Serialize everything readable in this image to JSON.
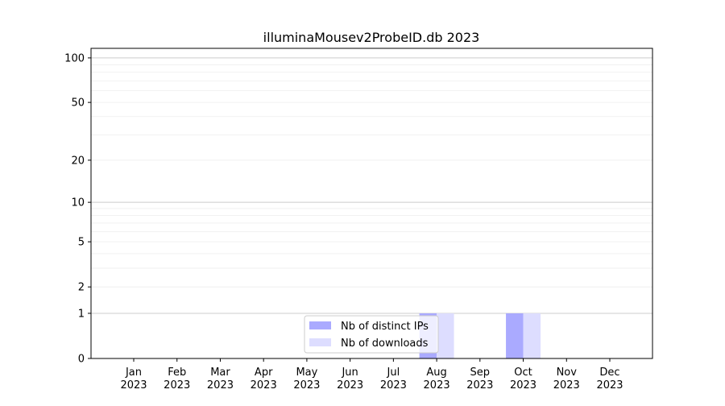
{
  "chart_data": {
    "type": "bar",
    "title": "illuminaMousev2ProbeID.db 2023",
    "xlabel": "",
    "ylabel": "",
    "y_scale": "symlog",
    "ylim": [
      0,
      116
    ],
    "y_ticks": [
      0,
      1,
      2,
      5,
      10,
      20,
      50,
      100
    ],
    "y_tick_labels": [
      "0",
      "1",
      "2",
      "5",
      "10",
      "20",
      "50",
      "100"
    ],
    "y_minor_grid": [
      3,
      4,
      6,
      7,
      8,
      9,
      30,
      40,
      60,
      70,
      80,
      90
    ],
    "grid": true,
    "legend_position": "lower-center",
    "categories": [
      [
        "Jan",
        "2023"
      ],
      [
        "Feb",
        "2023"
      ],
      [
        "Mar",
        "2023"
      ],
      [
        "Apr",
        "2023"
      ],
      [
        "May",
        "2023"
      ],
      [
        "Jun",
        "2023"
      ],
      [
        "Jul",
        "2023"
      ],
      [
        "Aug",
        "2023"
      ],
      [
        "Sep",
        "2023"
      ],
      [
        "Oct",
        "2023"
      ],
      [
        "Nov",
        "2023"
      ],
      [
        "Dec",
        "2023"
      ]
    ],
    "series": [
      {
        "name": "Nb of distinct IPs",
        "color": "#aaaaff",
        "values": [
          0,
          0,
          0,
          0,
          0,
          0,
          0,
          1,
          0,
          1,
          0,
          0
        ]
      },
      {
        "name": "Nb of downloads",
        "color": "#ddddff",
        "values": [
          0,
          0,
          0,
          0,
          0,
          0,
          0,
          1,
          0,
          1,
          0,
          0
        ]
      }
    ]
  }
}
